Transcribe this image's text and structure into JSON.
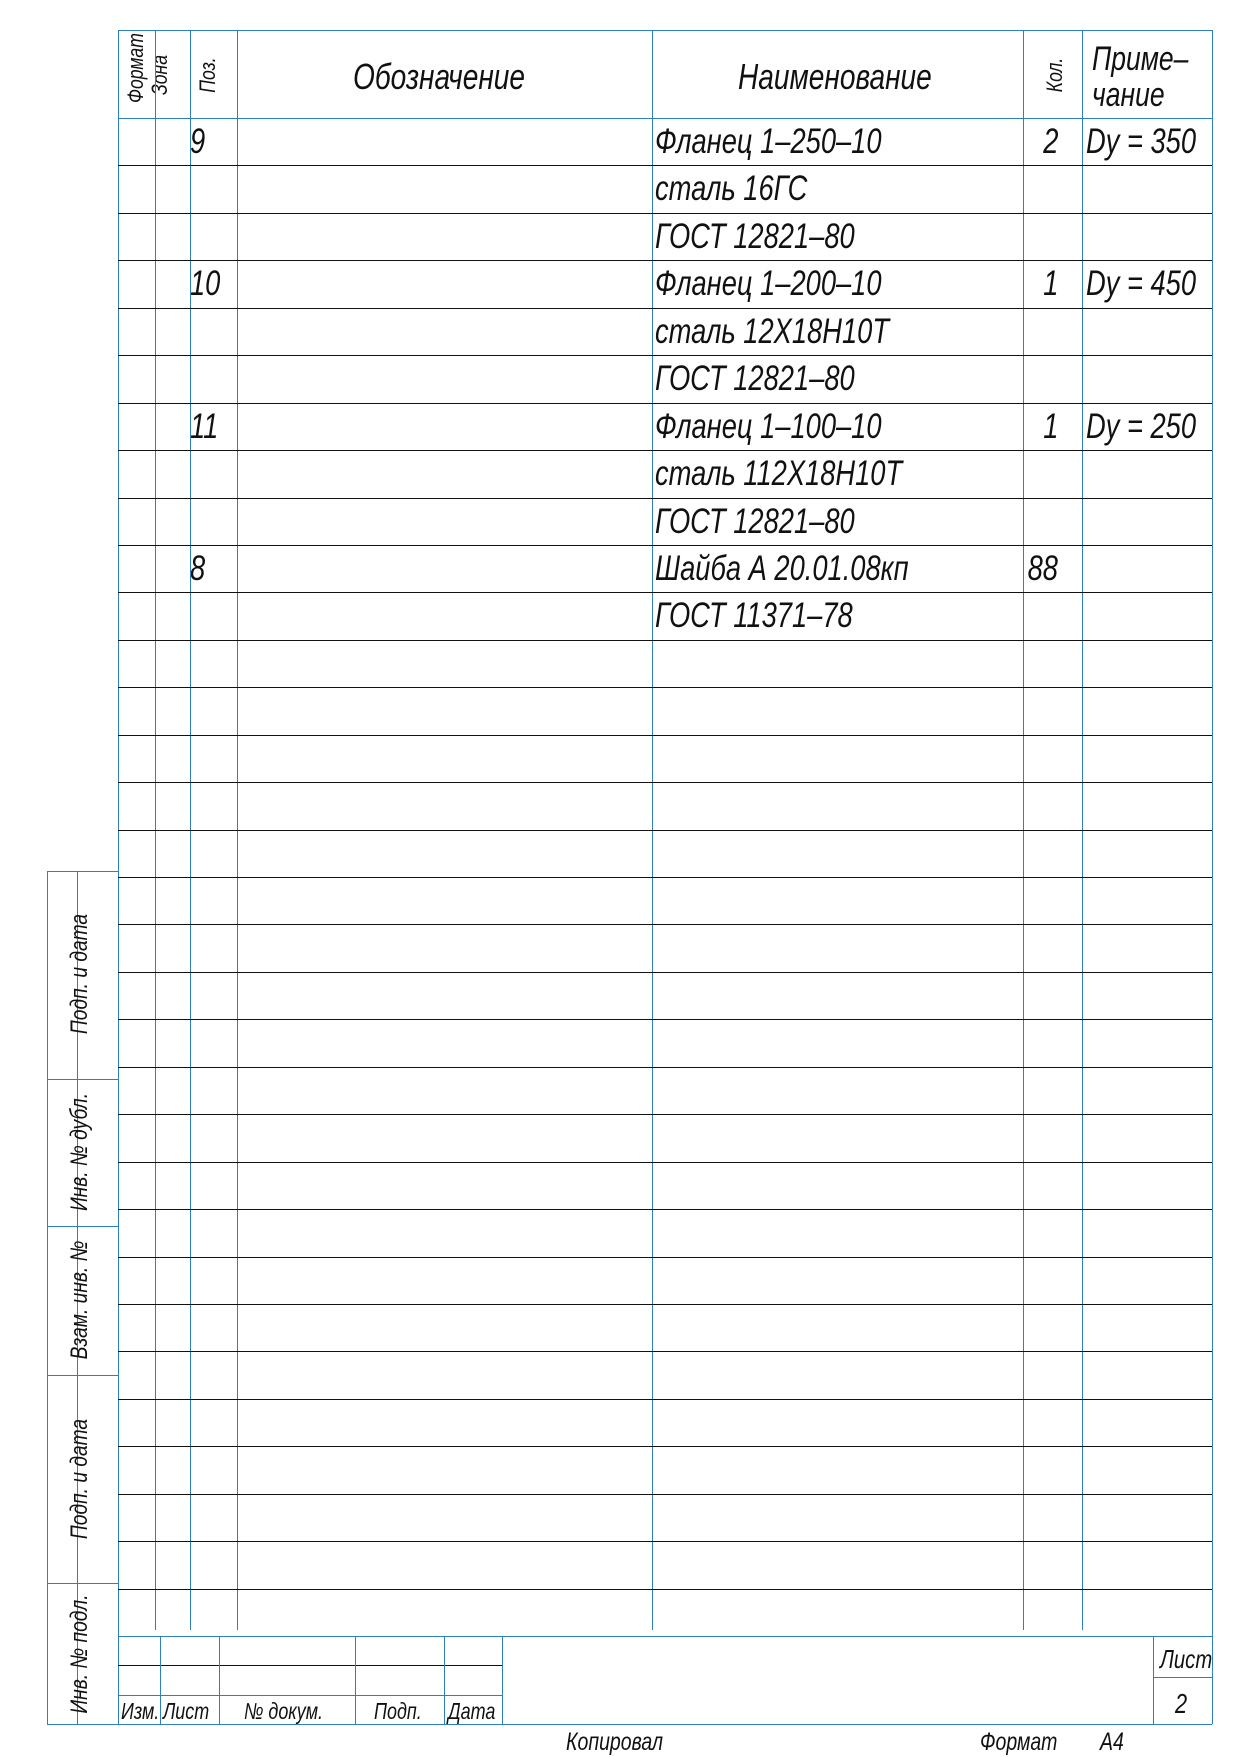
{
  "header": {
    "format": "Формат",
    "zone": "Зона",
    "pos": "Поз.",
    "designation": "Обозначение",
    "name": "Наименование",
    "qty": "Кол.",
    "note_line1": "Приме–",
    "note_line2": "чание"
  },
  "rows": [
    {
      "pos": "9",
      "designation": "",
      "name": "Фланец 1–250–10",
      "qty": "2",
      "note": "Dy = 350"
    },
    {
      "pos": "",
      "designation": "",
      "name": "сталь 16ГС",
      "qty": "",
      "note": ""
    },
    {
      "pos": "",
      "designation": "",
      "name": "ГОСТ 12821–80",
      "qty": "",
      "note": ""
    },
    {
      "pos": "10",
      "designation": "",
      "name": "Фланец 1–200–10",
      "qty": "1",
      "note": "Dy = 450"
    },
    {
      "pos": "",
      "designation": "",
      "name": "сталь 12Х18Н10Т",
      "qty": "",
      "note": ""
    },
    {
      "pos": "",
      "designation": "",
      "name": "ГОСТ 12821–80",
      "qty": "",
      "note": ""
    },
    {
      "pos": "11",
      "designation": "",
      "name": "Фланец 1–100–10",
      "qty": "1",
      "note": "Dy = 250"
    },
    {
      "pos": "",
      "designation": "",
      "name": "сталь 112Х18Н10Т",
      "qty": "",
      "note": ""
    },
    {
      "pos": "",
      "designation": "",
      "name": "ГОСТ 12821–80",
      "qty": "",
      "note": ""
    },
    {
      "pos": "8",
      "designation": "",
      "name": "Шайба А 20.01.08кп",
      "qty": "88",
      "note": ""
    },
    {
      "pos": "",
      "designation": "",
      "name": "ГОСТ 11371–78",
      "qty": "",
      "note": ""
    }
  ],
  "side_stamp": {
    "sign_date_1": "Подп. и дата",
    "inv_dup": "Инв. № дубл.",
    "replace_inv": "Взам. инв. №",
    "sign_date_2": "Подп. и дата",
    "inv_orig": "Инв. № подл."
  },
  "title_block": {
    "change": "Изм.",
    "sheet": "Лист",
    "doc_no": "№ докум.",
    "signature": "Подп.",
    "date": "Дата",
    "sheet_label": "Лист",
    "sheet_number": "2"
  },
  "footer": {
    "copied": "Копировал",
    "format_label": "Формат",
    "format_value": "A4"
  },
  "colors": {
    "frame": "#2f7fbf",
    "rule": "#111111"
  }
}
